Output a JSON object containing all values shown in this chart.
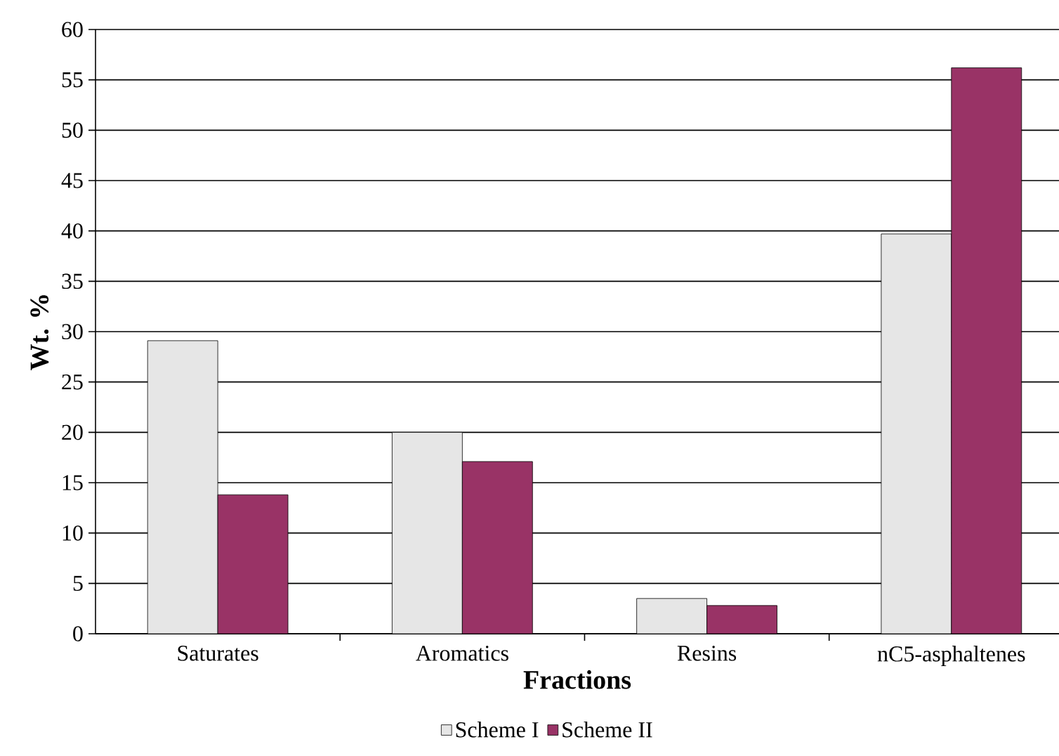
{
  "chart_data": {
    "type": "bar",
    "xlabel": "Fractions",
    "ylabel": "Wt. %",
    "categories": [
      "Saturates",
      "Aromatics",
      "Resins",
      "nC5-asphaltenes"
    ],
    "series": [
      {
        "name": "Scheme I",
        "color": "#e6e6e6",
        "values": [
          29.1,
          20.0,
          3.5,
          39.7
        ]
      },
      {
        "name": "Scheme II",
        "color": "#993366",
        "values": [
          13.8,
          17.1,
          2.8,
          56.2
        ]
      }
    ],
    "ylim": [
      0,
      60
    ],
    "yticks": [
      0,
      5,
      10,
      15,
      20,
      25,
      30,
      35,
      40,
      45,
      50,
      55,
      60
    ],
    "grid": "y",
    "legend": "bottom"
  }
}
